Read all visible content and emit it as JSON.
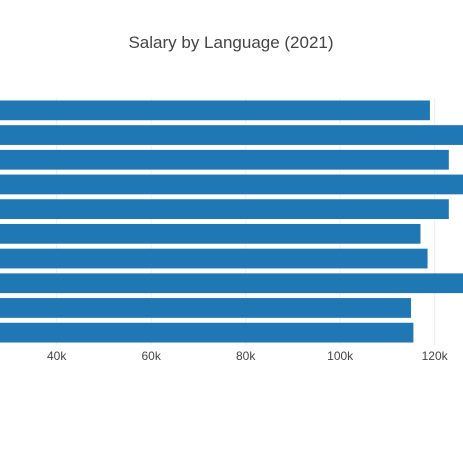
{
  "chart_data": {
    "type": "bar",
    "orientation": "horizontal",
    "title": "Salary by Language (2021)",
    "xlabel": "",
    "ylabel": "",
    "categories": [
      "",
      "",
      "",
      "",
      "",
      "",
      "",
      "",
      "",
      ""
    ],
    "values": [
      119000,
      127000,
      123000,
      127000,
      123000,
      117000,
      118500,
      126000,
      115000,
      115500
    ],
    "xlim": [
      28000,
      126000
    ],
    "xticks": [
      40000,
      60000,
      80000,
      100000,
      120000
    ],
    "xtick_labels": [
      "40k",
      "60k",
      "80k",
      "100k",
      "120k"
    ],
    "grid": true,
    "bar_color": "#1f77b4"
  }
}
